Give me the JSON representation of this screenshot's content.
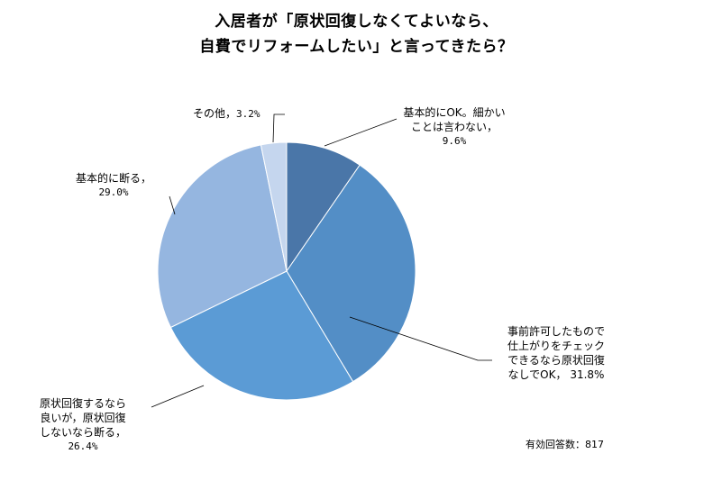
{
  "chart_data": {
    "type": "pie",
    "title": [
      "入居者が「原状回復しなくてよいなら、",
      "自費でリフォームしたい」と言ってきたら？"
    ],
    "slices": [
      {
        "lines": [
          "基本的にOK。細かい",
          "ことは言わない，"
        ],
        "pct": "9.6%",
        "value": 9.6,
        "color": "#4a76a8"
      },
      {
        "lines": [
          "事前許可したもので",
          "仕上がりをチェック",
          "できるなら原状回復",
          "なしでOK，"
        ],
        "pct": "31.8%",
        "value": 31.8,
        "color": "#538ec6"
      },
      {
        "lines": [
          "原状回復するなら",
          "良いが，原状回復",
          "しないなら断る，"
        ],
        "pct": "26.4%",
        "value": 26.4,
        "color": "#5b9bd5"
      },
      {
        "lines": [
          "基本的に断る，"
        ],
        "pct": "29.0%",
        "value": 29.0,
        "color": "#95b6e0"
      },
      {
        "lines": [
          "その他，"
        ],
        "pct": "3.2%",
        "value": 3.2,
        "color": "#c5d6ee"
      }
    ],
    "note": "有効回答数：817"
  }
}
